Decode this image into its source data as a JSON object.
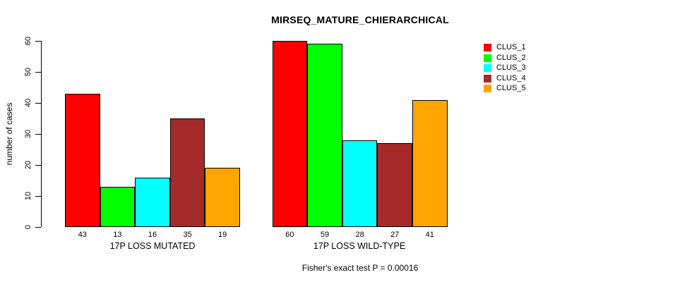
{
  "chart_data": {
    "type": "bar",
    "title": "MIRSEQ_MATURE_CHIERARCHICAL",
    "ylabel": "number of cases",
    "xlabel": "",
    "ylim": [
      0,
      60
    ],
    "yticks": [
      0,
      10,
      20,
      30,
      40,
      50,
      60
    ],
    "grid": false,
    "legend_position": "top-right",
    "categories": [
      "17P LOSS MUTATED",
      "17P LOSS WILD-TYPE"
    ],
    "series": [
      {
        "name": "CLUS_1",
        "color": "#FF0000",
        "values": [
          43,
          60
        ]
      },
      {
        "name": "CLUS_2",
        "color": "#00FF00",
        "values": [
          13,
          59
        ]
      },
      {
        "name": "CLUS_3",
        "color": "#00FFFF",
        "values": [
          16,
          28
        ]
      },
      {
        "name": "CLUS_4",
        "color": "#A52A2A",
        "values": [
          35,
          27
        ]
      },
      {
        "name": "CLUS_5",
        "color": "#FFA500",
        "values": [
          19,
          41
        ]
      }
    ],
    "bar_value_labels": [
      [
        43,
        13,
        16,
        35,
        19
      ],
      [
        60,
        59,
        28,
        27,
        41
      ]
    ],
    "footnote": "Fisher's exact test P = 0.00016"
  }
}
